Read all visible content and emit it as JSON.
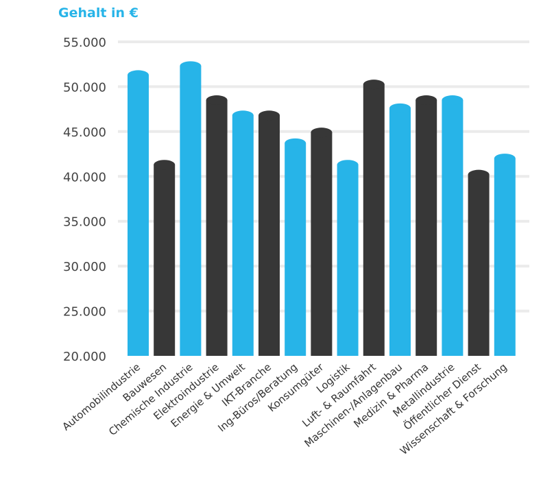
{
  "chart_data": {
    "type": "bar",
    "ylabel": "Gehalt in €",
    "ylim": [
      20000,
      55000
    ],
    "yticks": [
      "20.000",
      "25.000",
      "30.000",
      "35.000",
      "40.000",
      "45.000",
      "50.000",
      "55.000"
    ],
    "ytick_values": [
      20000,
      25000,
      30000,
      35000,
      40000,
      45000,
      50000,
      55000
    ],
    "grid": true,
    "categories": [
      "Automobilindustrie",
      "Bauwesen",
      "Chemische Industrie",
      "Elektroindustrie",
      "Energie & Umwelt",
      "IKT-Branche",
      "Ing-Büros/Beratung",
      "Konsumgüter",
      "Logistik",
      "Luft- & Raumfahrt",
      "Maschinen-/Anlagenbau",
      "Medizin & Pharma",
      "Metallindustrie",
      "Öffentlicher Dienst",
      "Wissenschaft & Forschung"
    ],
    "values": [
      51300,
      41300,
      52300,
      48500,
      46800,
      46800,
      43700,
      44900,
      41300,
      50250,
      47600,
      48500,
      48500,
      40200,
      42000
    ],
    "colors": [
      "#27b4e8",
      "#373737"
    ]
  }
}
